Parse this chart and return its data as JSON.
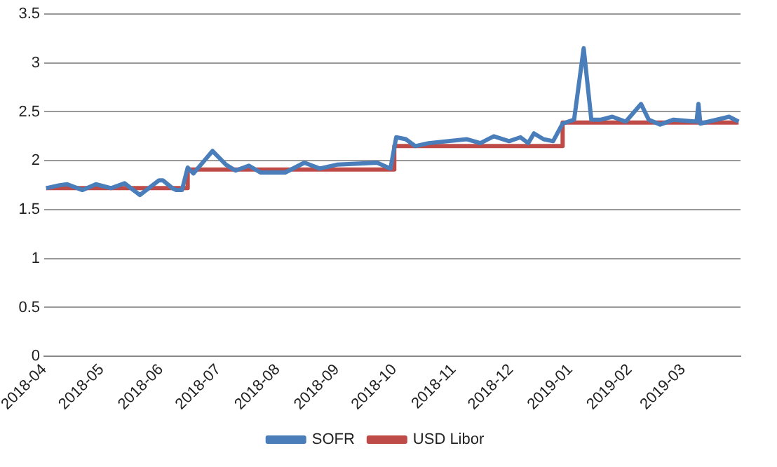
{
  "chart_data": {
    "type": "line",
    "ylim": [
      0,
      3.5
    ],
    "yticks": [
      0,
      0.5,
      1,
      1.5,
      2,
      2.5,
      3,
      3.5
    ],
    "grid": "y",
    "legend": "bottom",
    "marker": "none",
    "xlim": [
      "2018-04-01",
      "2019-03-31"
    ],
    "xticks": [
      {
        "value": "2018-04-01",
        "label": "2018-04"
      },
      {
        "value": "2018-05-01",
        "label": "2018-05"
      },
      {
        "value": "2018-06-01",
        "label": "2018-06"
      },
      {
        "value": "2018-07-01",
        "label": "2018-07"
      },
      {
        "value": "2018-08-01",
        "label": "2018-08"
      },
      {
        "value": "2018-09-01",
        "label": "2018-09"
      },
      {
        "value": "2018-10-01",
        "label": "2018-10"
      },
      {
        "value": "2018-11-01",
        "label": "2018-11"
      },
      {
        "value": "2018-12-01",
        "label": "2018-12"
      },
      {
        "value": "2019-01-01",
        "label": "2019-01"
      },
      {
        "value": "2019-02-01",
        "label": "2019-02"
      },
      {
        "value": "2019-03-01",
        "label": "2019-03"
      }
    ],
    "series": [
      {
        "name": "SOFR",
        "color": "#4a7ebb",
        "x": [
          "2018-04-02",
          "2018-04-09",
          "2018-04-13",
          "2018-04-21",
          "2018-04-28",
          "2018-05-06",
          "2018-05-13",
          "2018-05-21",
          "2018-05-31",
          "2018-06-02",
          "2018-06-07",
          "2018-06-09",
          "2018-06-12",
          "2018-06-15",
          "2018-06-18",
          "2018-06-28",
          "2018-07-05",
          "2018-07-10",
          "2018-07-17",
          "2018-07-23",
          "2018-08-05",
          "2018-08-15",
          "2018-08-23",
          "2018-09-01",
          "2018-09-11",
          "2018-09-22",
          "2018-09-29",
          "2018-10-02",
          "2018-10-07",
          "2018-10-12",
          "2018-10-19",
          "2018-11-08",
          "2018-11-15",
          "2018-11-22",
          "2018-11-30",
          "2018-12-06",
          "2018-12-10",
          "2018-12-13",
          "2018-12-18",
          "2018-12-23",
          "2018-12-28",
          "2019-01-03",
          "2019-01-08",
          "2019-01-12",
          "2019-01-17",
          "2019-01-23",
          "2019-01-30",
          "2019-02-07",
          "2019-02-11",
          "2019-02-17",
          "2019-02-24",
          "2019-03-08",
          "2019-03-09",
          "2019-03-10",
          "2019-03-25",
          "2019-03-30"
        ],
        "values": [
          1.72,
          1.75,
          1.76,
          1.7,
          1.76,
          1.72,
          1.77,
          1.65,
          1.8,
          1.8,
          1.72,
          1.7,
          1.7,
          1.93,
          1.87,
          2.1,
          1.96,
          1.9,
          1.95,
          1.88,
          1.88,
          1.98,
          1.92,
          1.96,
          1.97,
          1.98,
          1.92,
          2.24,
          2.22,
          2.15,
          2.18,
          2.22,
          2.18,
          2.25,
          2.2,
          2.24,
          2.18,
          2.28,
          2.22,
          2.2,
          2.38,
          2.42,
          3.15,
          2.42,
          2.42,
          2.45,
          2.4,
          2.58,
          2.42,
          2.37,
          2.42,
          2.4,
          2.58,
          2.38,
          2.45,
          2.4
        ]
      },
      {
        "name": "USD Libor",
        "color": "#be4b48",
        "type": "step",
        "x": [
          "2018-04-02",
          "2018-06-15",
          "2018-10-01",
          "2018-12-28",
          "2019-03-30"
        ],
        "values": [
          1.72,
          1.91,
          2.15,
          2.39,
          2.39
        ]
      }
    ]
  }
}
